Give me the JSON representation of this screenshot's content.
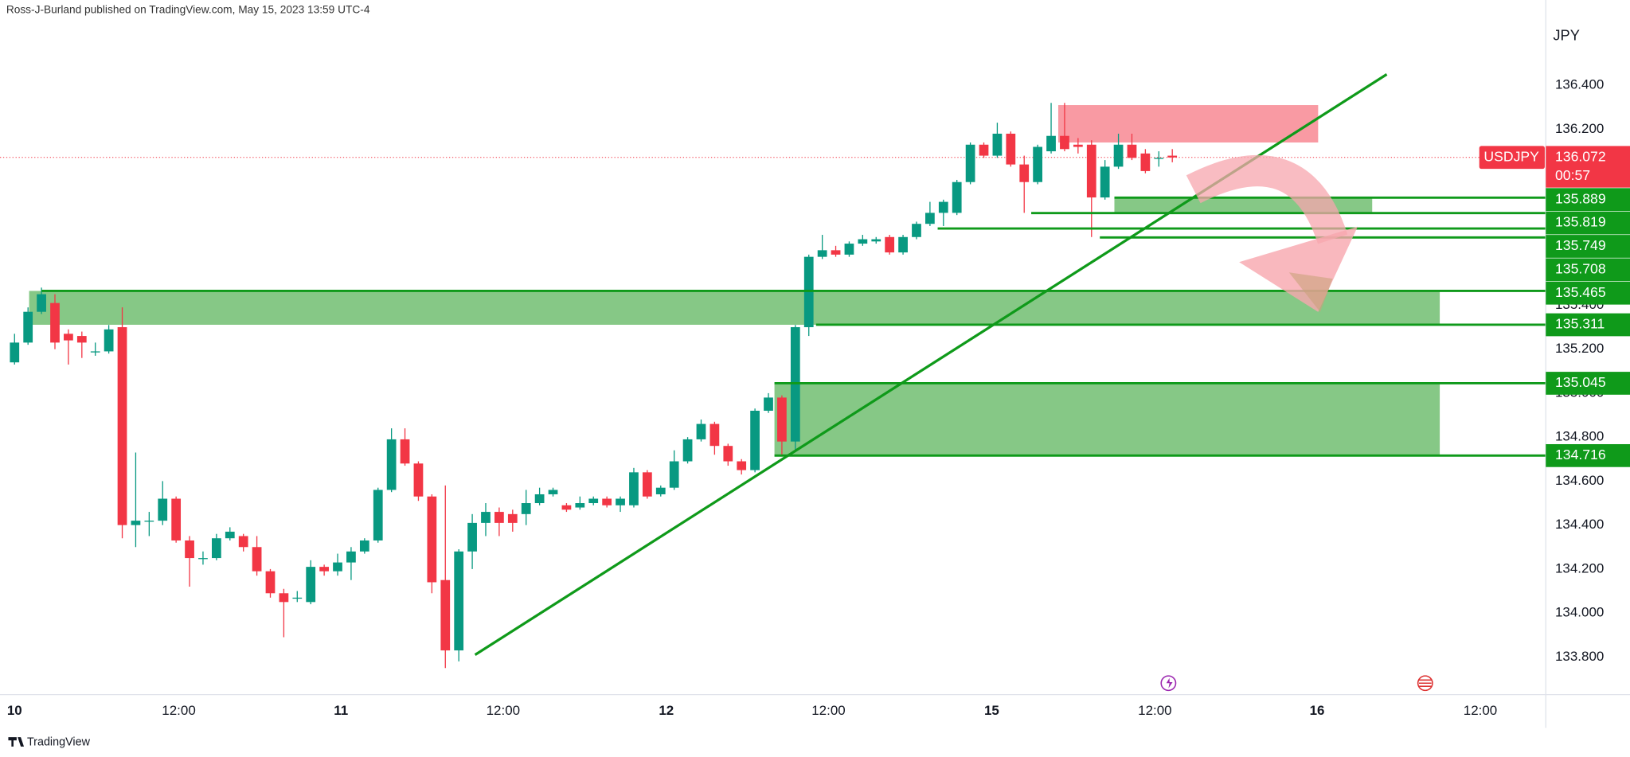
{
  "chart_data": {
    "type": "candlestick",
    "header": "Ross-J-Burland published on TradingView.com, May 15, 2023 13:59 UTC-4",
    "currency": "JPY",
    "brand": "TradingView",
    "symbol": "USDJPY",
    "last_price": 136.072,
    "countdown": "00:57",
    "up_color": "#089981",
    "down_color": "#f23645",
    "ylim": [
      133.629,
      136.788
    ],
    "yticks": [
      {
        "value": 136.4,
        "label": "136.400"
      },
      {
        "value": 136.2,
        "label": "136.200"
      },
      {
        "value": 135.4,
        "label": "135.400"
      },
      {
        "value": 135.2,
        "label": "135.200"
      },
      {
        "value": 135.0,
        "label": "135.000"
      },
      {
        "value": 134.8,
        "label": "134.800"
      },
      {
        "value": 134.6,
        "label": "134.600"
      },
      {
        "value": 134.4,
        "label": "134.400"
      },
      {
        "value": 134.2,
        "label": "134.200"
      },
      {
        "value": 134.0,
        "label": "134.000"
      },
      {
        "value": 133.8,
        "label": "133.800"
      }
    ],
    "categories": [
      "10",
      "12:00",
      "11",
      "12:00",
      "12",
      "12:00",
      "15",
      "12:00",
      "16",
      "12:00"
    ],
    "levels": [
      135.889,
      135.819,
      135.749,
      135.708,
      135.465,
      135.311,
      135.045,
      134.716
    ],
    "level_color": "#0f9a1a",
    "zones": [
      {
        "top": 135.465,
        "bottom": 135.311,
        "color": "#86c886"
      },
      {
        "top": 135.045,
        "bottom": 134.716,
        "color": "#86c886"
      },
      {
        "top": 135.889,
        "bottom": 135.82,
        "color": "#86c886"
      },
      {
        "top": 136.31,
        "bottom": 136.14,
        "color": "#f99aa3"
      }
    ],
    "trendline": [
      133.81,
      136.45
    ],
    "ohlc": [
      [
        135.14,
        135.27,
        135.13,
        135.23
      ],
      [
        135.23,
        135.39,
        135.22,
        135.37
      ],
      [
        135.37,
        135.48,
        135.36,
        135.45
      ],
      [
        135.41,
        135.45,
        135.2,
        135.23
      ],
      [
        135.27,
        135.29,
        135.13,
        135.24
      ],
      [
        135.26,
        135.28,
        135.16,
        135.23
      ],
      [
        135.19,
        135.23,
        135.17,
        135.19
      ],
      [
        135.19,
        135.31,
        135.18,
        135.29
      ],
      [
        135.3,
        135.39,
        134.34,
        134.4
      ],
      [
        134.4,
        134.73,
        134.3,
        134.42
      ],
      [
        134.42,
        134.46,
        134.35,
        134.42
      ],
      [
        134.42,
        134.6,
        134.4,
        134.52
      ],
      [
        134.52,
        134.53,
        134.32,
        134.33
      ],
      [
        134.33,
        134.35,
        134.12,
        134.25
      ],
      [
        134.25,
        134.28,
        134.22,
        134.25
      ],
      [
        134.25,
        134.36,
        134.24,
        134.34
      ],
      [
        134.34,
        134.39,
        134.33,
        134.37
      ],
      [
        134.35,
        134.36,
        134.28,
        134.3
      ],
      [
        134.3,
        134.35,
        134.17,
        134.19
      ],
      [
        134.19,
        134.2,
        134.07,
        134.09
      ],
      [
        134.09,
        134.11,
        133.89,
        134.05
      ],
      [
        134.07,
        134.1,
        134.05,
        134.07
      ],
      [
        134.05,
        134.24,
        134.04,
        134.21
      ],
      [
        134.21,
        134.22,
        134.17,
        134.19
      ],
      [
        134.19,
        134.27,
        134.17,
        134.23
      ],
      [
        134.23,
        134.3,
        134.15,
        134.28
      ],
      [
        134.28,
        134.34,
        134.27,
        134.33
      ],
      [
        134.33,
        134.57,
        134.32,
        134.56
      ],
      [
        134.56,
        134.84,
        134.55,
        134.79
      ],
      [
        134.79,
        134.84,
        134.67,
        134.68
      ],
      [
        134.68,
        134.69,
        134.51,
        134.53
      ],
      [
        134.53,
        134.54,
        134.09,
        134.14
      ],
      [
        134.15,
        134.58,
        133.75,
        133.83
      ],
      [
        133.83,
        134.29,
        133.78,
        134.28
      ],
      [
        134.28,
        134.45,
        134.2,
        134.41
      ],
      [
        134.41,
        134.5,
        134.35,
        134.46
      ],
      [
        134.46,
        134.48,
        134.35,
        134.41
      ],
      [
        134.45,
        134.47,
        134.37,
        134.41
      ],
      [
        134.45,
        134.56,
        134.4,
        134.5
      ],
      [
        134.5,
        134.57,
        134.49,
        134.54
      ],
      [
        134.54,
        134.57,
        134.53,
        134.56
      ],
      [
        134.49,
        134.5,
        134.46,
        134.47
      ],
      [
        134.48,
        134.53,
        134.47,
        134.5
      ],
      [
        134.5,
        134.53,
        134.49,
        134.52
      ],
      [
        134.52,
        134.53,
        134.48,
        134.49
      ],
      [
        134.49,
        134.53,
        134.46,
        134.52
      ],
      [
        134.49,
        134.66,
        134.48,
        134.64
      ],
      [
        134.64,
        134.65,
        134.52,
        134.53
      ],
      [
        134.54,
        134.58,
        134.53,
        134.57
      ],
      [
        134.57,
        134.74,
        134.56,
        134.69
      ],
      [
        134.69,
        134.8,
        134.68,
        134.79
      ],
      [
        134.79,
        134.88,
        134.78,
        134.86
      ],
      [
        134.86,
        134.87,
        134.72,
        134.76
      ],
      [
        134.76,
        134.77,
        134.67,
        134.69
      ],
      [
        134.69,
        134.7,
        134.63,
        134.65
      ],
      [
        134.65,
        134.93,
        134.64,
        134.92
      ],
      [
        134.92,
        135.0,
        134.91,
        134.98
      ],
      [
        134.98,
        134.99,
        134.72,
        134.78
      ],
      [
        134.78,
        135.31,
        134.74,
        135.3
      ],
      [
        135.3,
        135.63,
        135.26,
        135.62
      ],
      [
        135.62,
        135.72,
        135.61,
        135.65
      ],
      [
        135.65,
        135.67,
        135.62,
        135.63
      ],
      [
        135.63,
        135.69,
        135.62,
        135.68
      ],
      [
        135.68,
        135.72,
        135.67,
        135.7
      ],
      [
        135.69,
        135.71,
        135.68,
        135.7
      ],
      [
        135.71,
        135.72,
        135.63,
        135.64
      ],
      [
        135.64,
        135.72,
        135.63,
        135.71
      ],
      [
        135.71,
        135.78,
        135.7,
        135.77
      ],
      [
        135.77,
        135.87,
        135.76,
        135.82
      ],
      [
        135.82,
        135.88,
        135.76,
        135.87
      ],
      [
        135.82,
        135.97,
        135.81,
        135.96
      ],
      [
        135.96,
        136.14,
        135.95,
        136.13
      ],
      [
        136.13,
        136.14,
        136.07,
        136.08
      ],
      [
        136.08,
        136.23,
        136.07,
        136.18
      ],
      [
        136.18,
        136.19,
        136.03,
        136.04
      ],
      [
        136.04,
        136.08,
        135.82,
        135.96
      ],
      [
        135.96,
        136.13,
        135.95,
        136.12
      ],
      [
        136.1,
        136.32,
        136.09,
        136.17
      ],
      [
        136.17,
        136.32,
        136.1,
        136.11
      ],
      [
        136.13,
        136.16,
        136.09,
        136.12
      ],
      [
        136.13,
        136.15,
        135.71,
        135.89
      ],
      [
        135.89,
        136.06,
        135.88,
        136.03
      ],
      [
        136.03,
        136.18,
        136.02,
        136.13
      ],
      [
        136.13,
        136.18,
        136.06,
        136.07
      ],
      [
        136.09,
        136.11,
        136.0,
        136.01
      ],
      [
        136.07,
        136.1,
        136.03,
        136.07
      ],
      [
        136.08,
        136.11,
        136.05,
        136.072
      ]
    ]
  }
}
